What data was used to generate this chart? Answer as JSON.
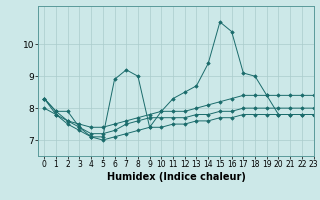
{
  "xlabel": "Humidex (Indice chaleur)",
  "ylabel": "",
  "bg_color": "#cce8e8",
  "grid_color": "#aacccc",
  "line_color": "#1a6b6b",
  "xlim": [
    -0.5,
    23
  ],
  "ylim": [
    6.5,
    11.2
  ],
  "yticks": [
    7,
    8,
    9,
    10
  ],
  "xticks": [
    0,
    1,
    2,
    3,
    4,
    5,
    6,
    7,
    8,
    9,
    10,
    11,
    12,
    13,
    14,
    15,
    16,
    17,
    18,
    19,
    20,
    21,
    22,
    23
  ],
  "series": [
    [
      8.3,
      7.9,
      7.9,
      7.4,
      7.1,
      7.1,
      8.9,
      9.2,
      9.0,
      7.4,
      7.9,
      8.3,
      8.5,
      8.7,
      9.4,
      10.7,
      10.4,
      9.1,
      9.0,
      8.4,
      7.8,
      7.8,
      7.8,
      7.8
    ],
    [
      8.0,
      7.8,
      7.6,
      7.5,
      7.4,
      7.4,
      7.5,
      7.6,
      7.7,
      7.8,
      7.9,
      7.9,
      7.9,
      8.0,
      8.1,
      8.2,
      8.3,
      8.4,
      8.4,
      8.4,
      8.4,
      8.4,
      8.4,
      8.4
    ],
    [
      8.3,
      7.9,
      7.6,
      7.4,
      7.2,
      7.2,
      7.3,
      7.5,
      7.6,
      7.7,
      7.7,
      7.7,
      7.7,
      7.8,
      7.8,
      7.9,
      7.9,
      8.0,
      8.0,
      8.0,
      8.0,
      8.0,
      8.0,
      8.0
    ],
    [
      8.3,
      7.8,
      7.5,
      7.3,
      7.1,
      7.0,
      7.1,
      7.2,
      7.3,
      7.4,
      7.4,
      7.5,
      7.5,
      7.6,
      7.6,
      7.7,
      7.7,
      7.8,
      7.8,
      7.8,
      7.8,
      7.8,
      7.8,
      7.8
    ]
  ]
}
